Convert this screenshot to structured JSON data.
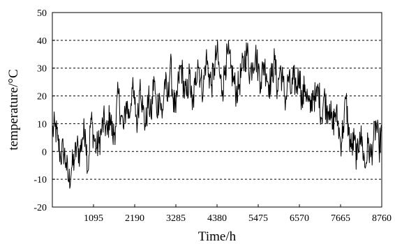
{
  "chart_data": {
    "type": "line",
    "title": "",
    "xlabel": "Time/h",
    "ylabel": "temperature/°C",
    "xlim": [
      0,
      8760
    ],
    "ylim": [
      -20,
      50
    ],
    "x_ticks": [
      1095,
      2190,
      3285,
      4380,
      5475,
      6570,
      7665,
      8760
    ],
    "y_ticks": [
      -20,
      -10,
      0,
      10,
      20,
      30,
      40,
      50
    ],
    "grid": "horizontal dashed",
    "legend": "none",
    "series": [
      {
        "color": "#000000",
        "sample_interval_h": 73,
        "x": [
          0,
          73,
          146,
          219,
          292,
          365,
          438,
          511,
          584,
          657,
          730,
          803,
          876,
          949,
          1022,
          1095,
          1168,
          1241,
          1314,
          1387,
          1460,
          1533,
          1606,
          1679,
          1752,
          1825,
          1898,
          1971,
          2044,
          2117,
          2190,
          2263,
          2336,
          2409,
          2482,
          2555,
          2628,
          2701,
          2774,
          2847,
          2920,
          2993,
          3066,
          3139,
          3212,
          3285,
          3358,
          3431,
          3504,
          3577,
          3650,
          3723,
          3796,
          3869,
          3942,
          4015,
          4088,
          4161,
          4234,
          4307,
          4380,
          4453,
          4526,
          4599,
          4672,
          4745,
          4818,
          4891,
          4964,
          5037,
          5110,
          5183,
          5256,
          5329,
          5402,
          5475,
          5548,
          5621,
          5694,
          5767,
          5840,
          5913,
          5986,
          6059,
          6132,
          6205,
          6278,
          6351,
          6424,
          6497,
          6570,
          6643,
          6716,
          6789,
          6862,
          6935,
          7008,
          7081,
          7154,
          7227,
          7300,
          7373,
          7446,
          7519,
          7592,
          7665,
          7738,
          7811,
          7884,
          7957,
          8030,
          8103,
          8176,
          8249,
          8322,
          8395,
          8468,
          8541,
          8614,
          8687,
          8760
        ],
        "y": [
          7,
          9,
          4,
          -2,
          1,
          -4,
          -11,
          -6,
          -3,
          2,
          -1,
          5,
          8,
          -7,
          12,
          6,
          1,
          3,
          8,
          11,
          6,
          14,
          5,
          9,
          21,
          13,
          8,
          18,
          12,
          23,
          17,
          10,
          26,
          15,
          9,
          19,
          12,
          27,
          14,
          21,
          12,
          26,
          18,
          32,
          19,
          14,
          26,
          31,
          22,
          20,
          28,
          15,
          24,
          33,
          26,
          22,
          34,
          28,
          24,
          30,
          36,
          27,
          22,
          31,
          35,
          30,
          26,
          21,
          24,
          29,
          33,
          36,
          28,
          32,
          35,
          30,
          25,
          32,
          28,
          24,
          27,
          33,
          22,
          30,
          25,
          18,
          27,
          21,
          26,
          23,
          29,
          17,
          24,
          19,
          14,
          22,
          18,
          23,
          12,
          20,
          15,
          17,
          8,
          14,
          11,
          3,
          9,
          19,
          6,
          1,
          4,
          -3,
          7,
          2,
          -6,
          3,
          -2,
          4,
          10,
          1,
          7
        ]
      }
    ]
  }
}
